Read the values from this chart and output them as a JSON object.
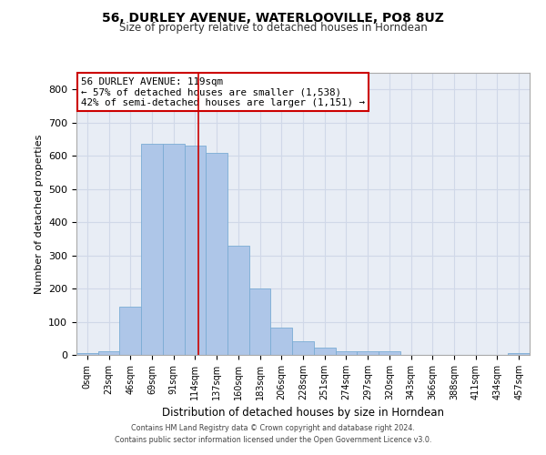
{
  "title1": "56, DURLEY AVENUE, WATERLOOVILLE, PO8 8UZ",
  "title2": "Size of property relative to detached houses in Horndean",
  "xlabel": "Distribution of detached houses by size in Horndean",
  "ylabel": "Number of detached properties",
  "categories": [
    "0sqm",
    "23sqm",
    "46sqm",
    "69sqm",
    "91sqm",
    "114sqm",
    "137sqm",
    "160sqm",
    "183sqm",
    "206sqm",
    "228sqm",
    "251sqm",
    "274sqm",
    "297sqm",
    "320sqm",
    "343sqm",
    "366sqm",
    "388sqm",
    "411sqm",
    "434sqm",
    "457sqm"
  ],
  "values": [
    5,
    10,
    145,
    635,
    635,
    630,
    610,
    330,
    200,
    83,
    40,
    23,
    10,
    10,
    10,
    0,
    0,
    0,
    0,
    0,
    5
  ],
  "bar_color": "#aec6e8",
  "bar_edgecolor": "#7aacd4",
  "annotation_text": "56 DURLEY AVENUE: 119sqm\n← 57% of detached houses are smaller (1,538)\n42% of semi-detached houses are larger (1,151) →",
  "redline_x": 5.17,
  "annotation_box_color": "#ffffff",
  "annotation_box_edge": "#cc0000",
  "grid_color": "#d0d8e8",
  "background_color": "#e8edf5",
  "ylim": [
    0,
    850
  ],
  "yticks": [
    0,
    100,
    200,
    300,
    400,
    500,
    600,
    700,
    800
  ],
  "footer1": "Contains HM Land Registry data © Crown copyright and database right 2024.",
  "footer2": "Contains public sector information licensed under the Open Government Licence v3.0.",
  "fig_width": 6.0,
  "fig_height": 5.0,
  "dpi": 100
}
